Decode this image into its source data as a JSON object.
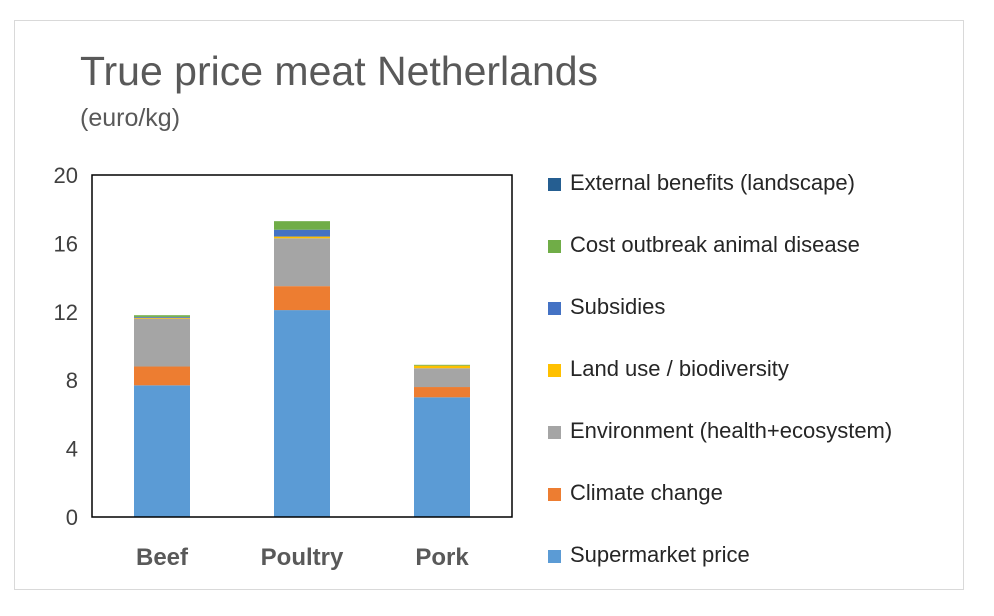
{
  "chart_data": {
    "type": "bar",
    "stacked": true,
    "title": "True price meat Netherlands",
    "subtitle": "(euro/kg)",
    "categories": [
      "Beef",
      "Poultry",
      "Pork"
    ],
    "yticks": [
      "0",
      "4",
      "8",
      "12",
      "16",
      "20"
    ],
    "ylim": [
      0,
      20
    ],
    "legend_position": "right",
    "series": [
      {
        "name": "Supermarket price",
        "color": "#5B9BD5",
        "values": [
          7.7,
          12.1,
          7.0
        ]
      },
      {
        "name": "Climate change",
        "color": "#ED7D31",
        "values": [
          1.1,
          1.4,
          0.6
        ]
      },
      {
        "name": "Environment (health+ecosystem)",
        "color": "#A5A5A5",
        "values": [
          2.8,
          2.8,
          1.1
        ]
      },
      {
        "name": "Land use / biodiversity",
        "color": "#FFC000",
        "values": [
          0.05,
          0.1,
          0.15
        ]
      },
      {
        "name": "Subsidies",
        "color": "#4472C4",
        "values": [
          0.05,
          0.4,
          0.0
        ]
      },
      {
        "name": "Cost outbreak animal disease",
        "color": "#70AD47",
        "values": [
          0.1,
          0.5,
          0.05
        ]
      },
      {
        "name": "External benefits (landscape)",
        "color": "#255E91",
        "values": [
          0.0,
          0.0,
          0.0
        ]
      }
    ]
  }
}
